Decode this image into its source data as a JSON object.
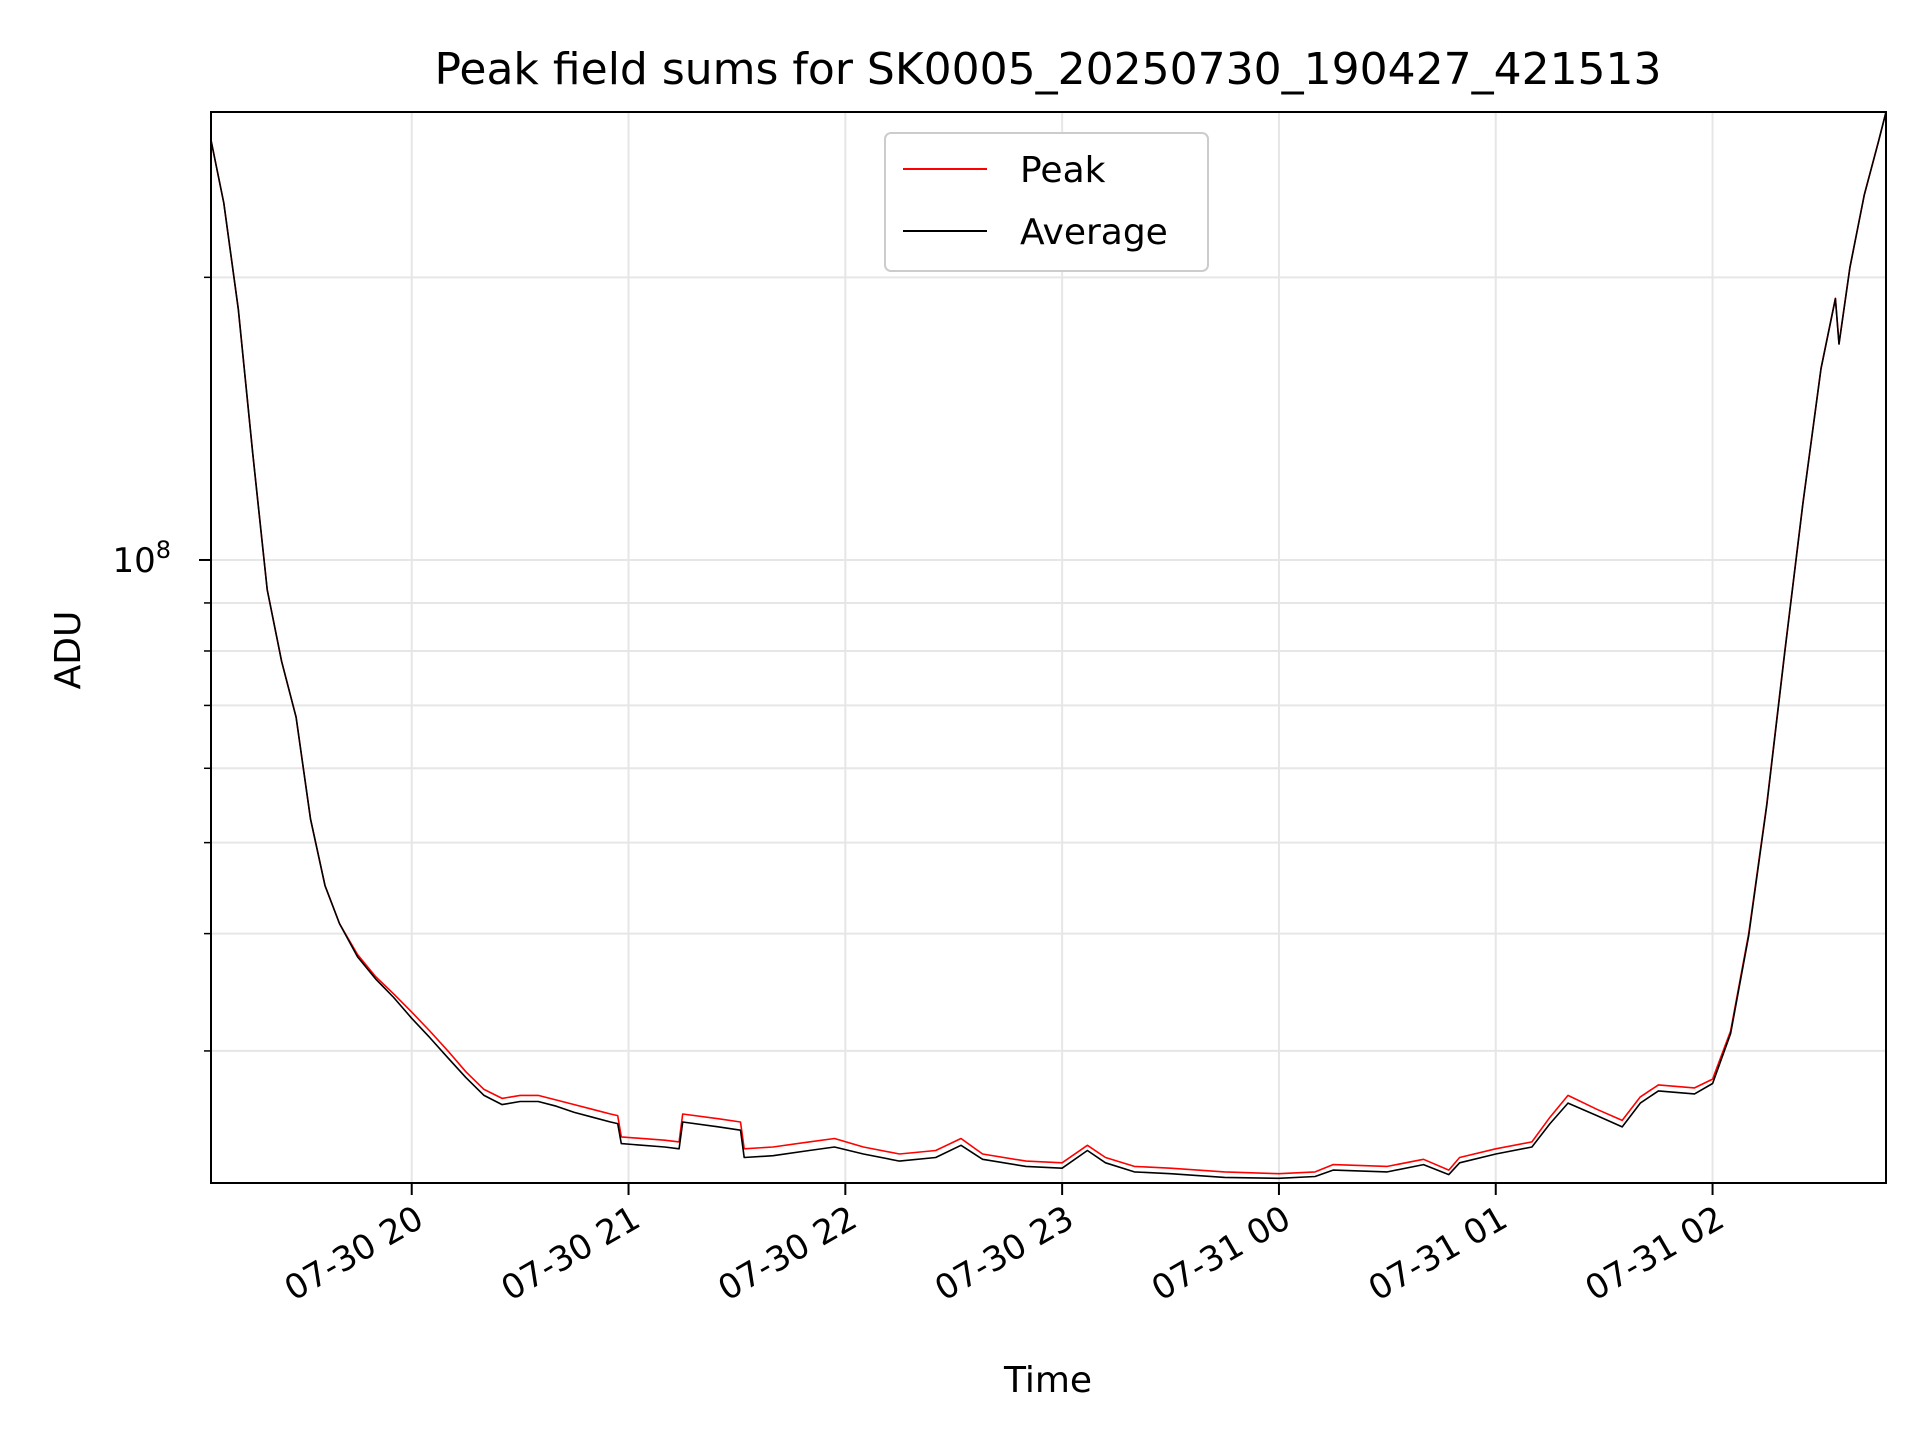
{
  "chart_data": {
    "type": "line",
    "title": "Peak field sums for SK0005_20250730_190427_421513",
    "xlabel": "Time",
    "ylabel": "ADU",
    "y_scale": "log",
    "xlim": [
      "2025-07-30 19:04:27",
      "2025-07-31 02:48:00"
    ],
    "ylim": [
      21700000,
      300000000
    ],
    "x_ticks": [
      "07-30 20",
      "07-30 21",
      "07-30 22",
      "07-30 23",
      "07-31 00",
      "07-31 01",
      "07-31 02"
    ],
    "y_ticks": [
      {
        "label": "10",
        "exponent": "8",
        "value": 100000000
      }
    ],
    "y_minor_ticks": [
      30000000,
      40000000,
      50000000,
      60000000,
      70000000,
      80000000,
      90000000,
      200000000
    ],
    "grid": true,
    "legend": "upper center",
    "colors": {
      "peak": "#ff0000",
      "average": "#000000",
      "grid": "#e6e6e6"
    },
    "series": [
      {
        "name": "Peak",
        "color": "#ff0000",
        "points": [
          [
            "2025-07-30 19:04:27",
            280000000
          ],
          [
            "2025-07-30 19:08:00",
            240000000
          ],
          [
            "2025-07-30 19:12:00",
            185000000
          ],
          [
            "2025-07-30 19:16:00",
            130000000
          ],
          [
            "2025-07-30 19:20:00",
            93000000
          ],
          [
            "2025-07-30 19:24:00",
            78000000
          ],
          [
            "2025-07-30 19:28:00",
            68000000
          ],
          [
            "2025-07-30 19:32:00",
            53000000
          ],
          [
            "2025-07-30 19:36:00",
            45000000
          ],
          [
            "2025-07-30 19:40:00",
            41000000
          ],
          [
            "2025-07-30 19:45:00",
            38000000
          ],
          [
            "2025-07-30 19:50:00",
            36000000
          ],
          [
            "2025-07-30 19:55:00",
            34500000
          ],
          [
            "2025-07-30 20:00:00",
            33000000
          ],
          [
            "2025-07-30 20:05:00",
            31500000
          ],
          [
            "2025-07-30 20:10:00",
            30000000
          ],
          [
            "2025-07-30 20:15:00",
            28500000
          ],
          [
            "2025-07-30 20:20:00",
            27300000
          ],
          [
            "2025-07-30 20:25:00",
            26700000
          ],
          [
            "2025-07-30 20:30:00",
            26900000
          ],
          [
            "2025-07-30 20:35:00",
            26900000
          ],
          [
            "2025-07-30 20:40:00",
            26600000
          ],
          [
            "2025-07-30 20:45:00",
            26300000
          ],
          [
            "2025-07-30 20:50:00",
            26000000
          ],
          [
            "2025-07-30 20:55:00",
            25700000
          ],
          [
            "2025-07-30 20:57:00",
            25600000
          ],
          [
            "2025-07-30 20:58:00",
            24300000
          ],
          [
            "2025-07-30 21:10:00",
            24100000
          ],
          [
            "2025-07-30 21:14:00",
            24000000
          ],
          [
            "2025-07-30 21:15:00",
            25700000
          ],
          [
            "2025-07-30 21:25:00",
            25400000
          ],
          [
            "2025-07-30 21:31:00",
            25200000
          ],
          [
            "2025-07-30 21:32:00",
            23600000
          ],
          [
            "2025-07-30 21:40:00",
            23700000
          ],
          [
            "2025-07-30 21:50:00",
            24000000
          ],
          [
            "2025-07-30 21:57:00",
            24200000
          ],
          [
            "2025-07-30 22:05:00",
            23700000
          ],
          [
            "2025-07-30 22:15:00",
            23300000
          ],
          [
            "2025-07-30 22:25:00",
            23500000
          ],
          [
            "2025-07-30 22:32:00",
            24200000
          ],
          [
            "2025-07-30 22:38:00",
            23300000
          ],
          [
            "2025-07-30 22:50:00",
            22900000
          ],
          [
            "2025-07-30 23:00:00",
            22800000
          ],
          [
            "2025-07-30 23:07:00",
            23800000
          ],
          [
            "2025-07-30 23:12:00",
            23100000
          ],
          [
            "2025-07-30 23:20:00",
            22600000
          ],
          [
            "2025-07-30 23:30:00",
            22500000
          ],
          [
            "2025-07-30 23:45:00",
            22300000
          ],
          [
            "2025-07-31 00:00:00",
            22200000
          ],
          [
            "2025-07-31 00:10:00",
            22300000
          ],
          [
            "2025-07-31 00:15:00",
            22700000
          ],
          [
            "2025-07-31 00:30:00",
            22600000
          ],
          [
            "2025-07-31 00:40:00",
            23000000
          ],
          [
            "2025-07-31 00:47:00",
            22400000
          ],
          [
            "2025-07-31 00:50:00",
            23100000
          ],
          [
            "2025-07-31 01:00:00",
            23600000
          ],
          [
            "2025-07-31 01:10:00",
            24000000
          ],
          [
            "2025-07-31 01:15:00",
            25500000
          ],
          [
            "2025-07-31 01:20:00",
            26900000
          ],
          [
            "2025-07-31 01:28:00",
            26000000
          ],
          [
            "2025-07-31 01:35:00",
            25300000
          ],
          [
            "2025-07-31 01:40:00",
            26800000
          ],
          [
            "2025-07-31 01:45:00",
            27600000
          ],
          [
            "2025-07-31 01:55:00",
            27400000
          ],
          [
            "2025-07-31 02:00:00",
            28000000
          ],
          [
            "2025-07-31 02:05:00",
            31500000
          ],
          [
            "2025-07-31 02:10:00",
            40000000
          ],
          [
            "2025-07-31 02:15:00",
            55000000
          ],
          [
            "2025-07-31 02:20:00",
            80000000
          ],
          [
            "2025-07-31 02:25:00",
            115000000
          ],
          [
            "2025-07-31 02:30:00",
            160000000
          ],
          [
            "2025-07-31 02:34:00",
            190000000
          ],
          [
            "2025-07-31 02:35:00",
            170000000
          ],
          [
            "2025-07-31 02:38:00",
            205000000
          ],
          [
            "2025-07-31 02:42:00",
            245000000
          ],
          [
            "2025-07-31 02:46:00",
            280000000
          ],
          [
            "2025-07-31 02:48:00",
            300000000
          ]
        ]
      },
      {
        "name": "Average",
        "color": "#000000",
        "points": [
          [
            "2025-07-30 19:04:27",
            280000000
          ],
          [
            "2025-07-30 19:08:00",
            240000000
          ],
          [
            "2025-07-30 19:12:00",
            185000000
          ],
          [
            "2025-07-30 19:16:00",
            130000000
          ],
          [
            "2025-07-30 19:20:00",
            93000000
          ],
          [
            "2025-07-30 19:24:00",
            78000000
          ],
          [
            "2025-07-30 19:28:00",
            68000000
          ],
          [
            "2025-07-30 19:32:00",
            53000000
          ],
          [
            "2025-07-30 19:36:00",
            45000000
          ],
          [
            "2025-07-30 19:40:00",
            41000000
          ],
          [
            "2025-07-30 19:45:00",
            37800000
          ],
          [
            "2025-07-30 19:50:00",
            35800000
          ],
          [
            "2025-07-30 19:55:00",
            34200000
          ],
          [
            "2025-07-30 20:00:00",
            32500000
          ],
          [
            "2025-07-30 20:05:00",
            31000000
          ],
          [
            "2025-07-30 20:10:00",
            29500000
          ],
          [
            "2025-07-30 20:15:00",
            28100000
          ],
          [
            "2025-07-30 20:20:00",
            26900000
          ],
          [
            "2025-07-30 20:25:00",
            26300000
          ],
          [
            "2025-07-30 20:30:00",
            26500000
          ],
          [
            "2025-07-30 20:35:00",
            26500000
          ],
          [
            "2025-07-30 20:40:00",
            26200000
          ],
          [
            "2025-07-30 20:45:00",
            25800000
          ],
          [
            "2025-07-30 20:50:00",
            25500000
          ],
          [
            "2025-07-30 20:55:00",
            25200000
          ],
          [
            "2025-07-30 20:57:00",
            25100000
          ],
          [
            "2025-07-30 20:58:00",
            23900000
          ],
          [
            "2025-07-30 21:10:00",
            23700000
          ],
          [
            "2025-07-30 21:14:00",
            23600000
          ],
          [
            "2025-07-30 21:15:00",
            25200000
          ],
          [
            "2025-07-30 21:25:00",
            24900000
          ],
          [
            "2025-07-30 21:31:00",
            24700000
          ],
          [
            "2025-07-30 21:32:00",
            23100000
          ],
          [
            "2025-07-30 21:40:00",
            23200000
          ],
          [
            "2025-07-30 21:50:00",
            23500000
          ],
          [
            "2025-07-30 21:57:00",
            23700000
          ],
          [
            "2025-07-30 22:05:00",
            23300000
          ],
          [
            "2025-07-30 22:15:00",
            22900000
          ],
          [
            "2025-07-30 22:25:00",
            23100000
          ],
          [
            "2025-07-30 22:32:00",
            23800000
          ],
          [
            "2025-07-30 22:38:00",
            23000000
          ],
          [
            "2025-07-30 22:50:00",
            22600000
          ],
          [
            "2025-07-30 23:00:00",
            22500000
          ],
          [
            "2025-07-30 23:07:00",
            23500000
          ],
          [
            "2025-07-30 23:12:00",
            22800000
          ],
          [
            "2025-07-30 23:20:00",
            22300000
          ],
          [
            "2025-07-30 23:30:00",
            22200000
          ],
          [
            "2025-07-30 23:45:00",
            22000000
          ],
          [
            "2025-07-31 00:00:00",
            21950000
          ],
          [
            "2025-07-31 00:10:00",
            22050000
          ],
          [
            "2025-07-31 00:15:00",
            22400000
          ],
          [
            "2025-07-31 00:30:00",
            22300000
          ],
          [
            "2025-07-31 00:40:00",
            22700000
          ],
          [
            "2025-07-31 00:47:00",
            22150000
          ],
          [
            "2025-07-31 00:50:00",
            22800000
          ],
          [
            "2025-07-31 01:00:00",
            23300000
          ],
          [
            "2025-07-31 01:10:00",
            23700000
          ],
          [
            "2025-07-31 01:15:00",
            25100000
          ],
          [
            "2025-07-31 01:20:00",
            26400000
          ],
          [
            "2025-07-31 01:28:00",
            25600000
          ],
          [
            "2025-07-31 01:35:00",
            24900000
          ],
          [
            "2025-07-31 01:40:00",
            26400000
          ],
          [
            "2025-07-31 01:45:00",
            27200000
          ],
          [
            "2025-07-31 01:55:00",
            27000000
          ],
          [
            "2025-07-31 02:00:00",
            27700000
          ],
          [
            "2025-07-31 02:05:00",
            31300000
          ],
          [
            "2025-07-31 02:10:00",
            39800000
          ],
          [
            "2025-07-31 02:15:00",
            54800000
          ],
          [
            "2025-07-31 02:20:00",
            79800000
          ],
          [
            "2025-07-31 02:25:00",
            114800000
          ],
          [
            "2025-07-31 02:30:00",
            159800000
          ],
          [
            "2025-07-31 02:34:00",
            189800000
          ],
          [
            "2025-07-31 02:35:00",
            169800000
          ],
          [
            "2025-07-31 02:38:00",
            204800000
          ],
          [
            "2025-07-31 02:42:00",
            244800000
          ],
          [
            "2025-07-31 02:46:00",
            279800000
          ],
          [
            "2025-07-31 02:48:00",
            300000000
          ]
        ]
      }
    ]
  }
}
